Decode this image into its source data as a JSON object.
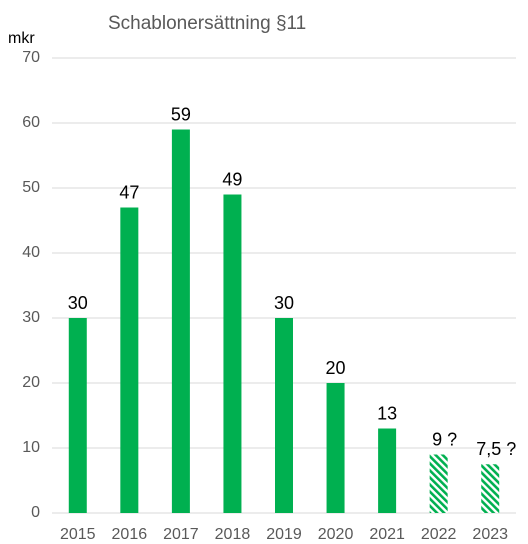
{
  "chart_data": {
    "type": "bar",
    "title": "Schablonersättning §11",
    "y_label": "mkr",
    "categories": [
      "2015",
      "2016",
      "2017",
      "2018",
      "2019",
      "2020",
      "2021",
      "2022",
      "2023"
    ],
    "values": [
      30,
      47,
      59,
      49,
      30,
      20,
      13,
      9,
      7.5
    ],
    "value_labels": [
      "30",
      "47",
      "59",
      "49",
      "30",
      "20",
      "13",
      "9 ?",
      "7,5 ?"
    ],
    "fill_styles": [
      "solid",
      "solid",
      "solid",
      "solid",
      "solid",
      "solid",
      "solid",
      "hatched",
      "hatched"
    ],
    "color": "#00b050",
    "ylim": [
      0,
      70
    ],
    "yticks": [
      0,
      10,
      20,
      30,
      40,
      50,
      60,
      70
    ],
    "grid": true
  }
}
